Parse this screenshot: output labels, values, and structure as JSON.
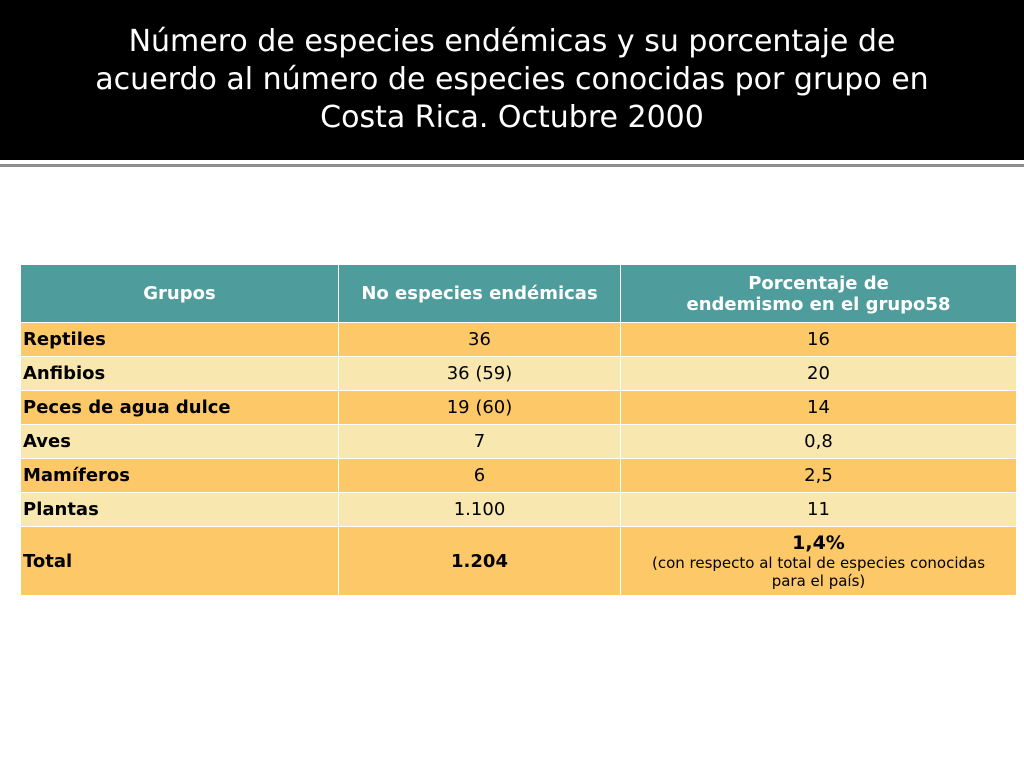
{
  "title": {
    "line1": "Número de especies endémicas y su porcentaje de",
    "line2": "acuerdo al número de especies conocidas por grupo en",
    "line3": "Costa Rica. Octubre 2000"
  },
  "table": {
    "headers": {
      "groups": "Grupos",
      "count": "No especies endémicas",
      "percent_line1": "Porcentaje de",
      "percent_line2": "endemismo en el grupo58"
    },
    "rows": [
      {
        "group": "Reptiles",
        "count": "36",
        "percent": "16"
      },
      {
        "group": "Anfibios",
        "count": "36 (59)",
        "percent": "20"
      },
      {
        "group": "Peces de agua dulce",
        "count": "19 (60)",
        "percent": "14"
      },
      {
        "group": "Aves",
        "count": "7",
        "percent": "0,8"
      },
      {
        "group": "Mamíferos",
        "count": "6",
        "percent": "2,5"
      },
      {
        "group": "Plantas",
        "count": "1.100",
        "percent": "11"
      }
    ],
    "total": {
      "group": "Total",
      "count": "1.204",
      "percent": "1,4%",
      "note_line1": "(con respecto al total de especies conocidas",
      "note_line2": "para el país)"
    }
  },
  "colors": {
    "header_bg": "#4f9c9d",
    "row_orange": "#fdc867",
    "row_cream": "#f9e7b0",
    "title_bg": "#000000"
  }
}
